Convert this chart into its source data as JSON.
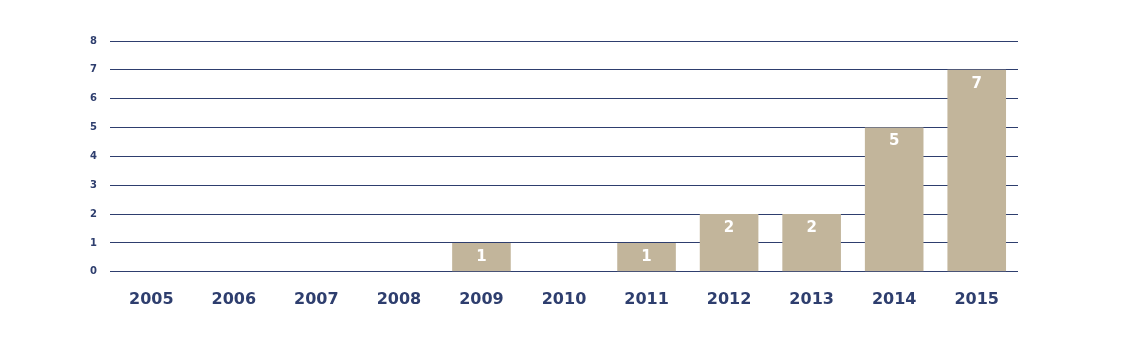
{
  "chart_data": {
    "type": "bar",
    "categories": [
      "2005",
      "2006",
      "2007",
      "2008",
      "2009",
      "2010",
      "2011",
      "2012",
      "2013",
      "2014",
      "2015"
    ],
    "values": [
      0,
      0,
      0,
      0,
      1,
      0,
      1,
      2,
      2,
      5,
      7
    ],
    "value_labels": [
      null,
      null,
      null,
      null,
      "1",
      null,
      "1",
      "2",
      "2",
      "5",
      "7"
    ],
    "color": "#c2b59b",
    "ylim": [
      0,
      8
    ],
    "yticks": [
      0,
      1,
      2,
      3,
      4,
      5,
      6,
      7,
      8
    ],
    "grid": "y"
  }
}
